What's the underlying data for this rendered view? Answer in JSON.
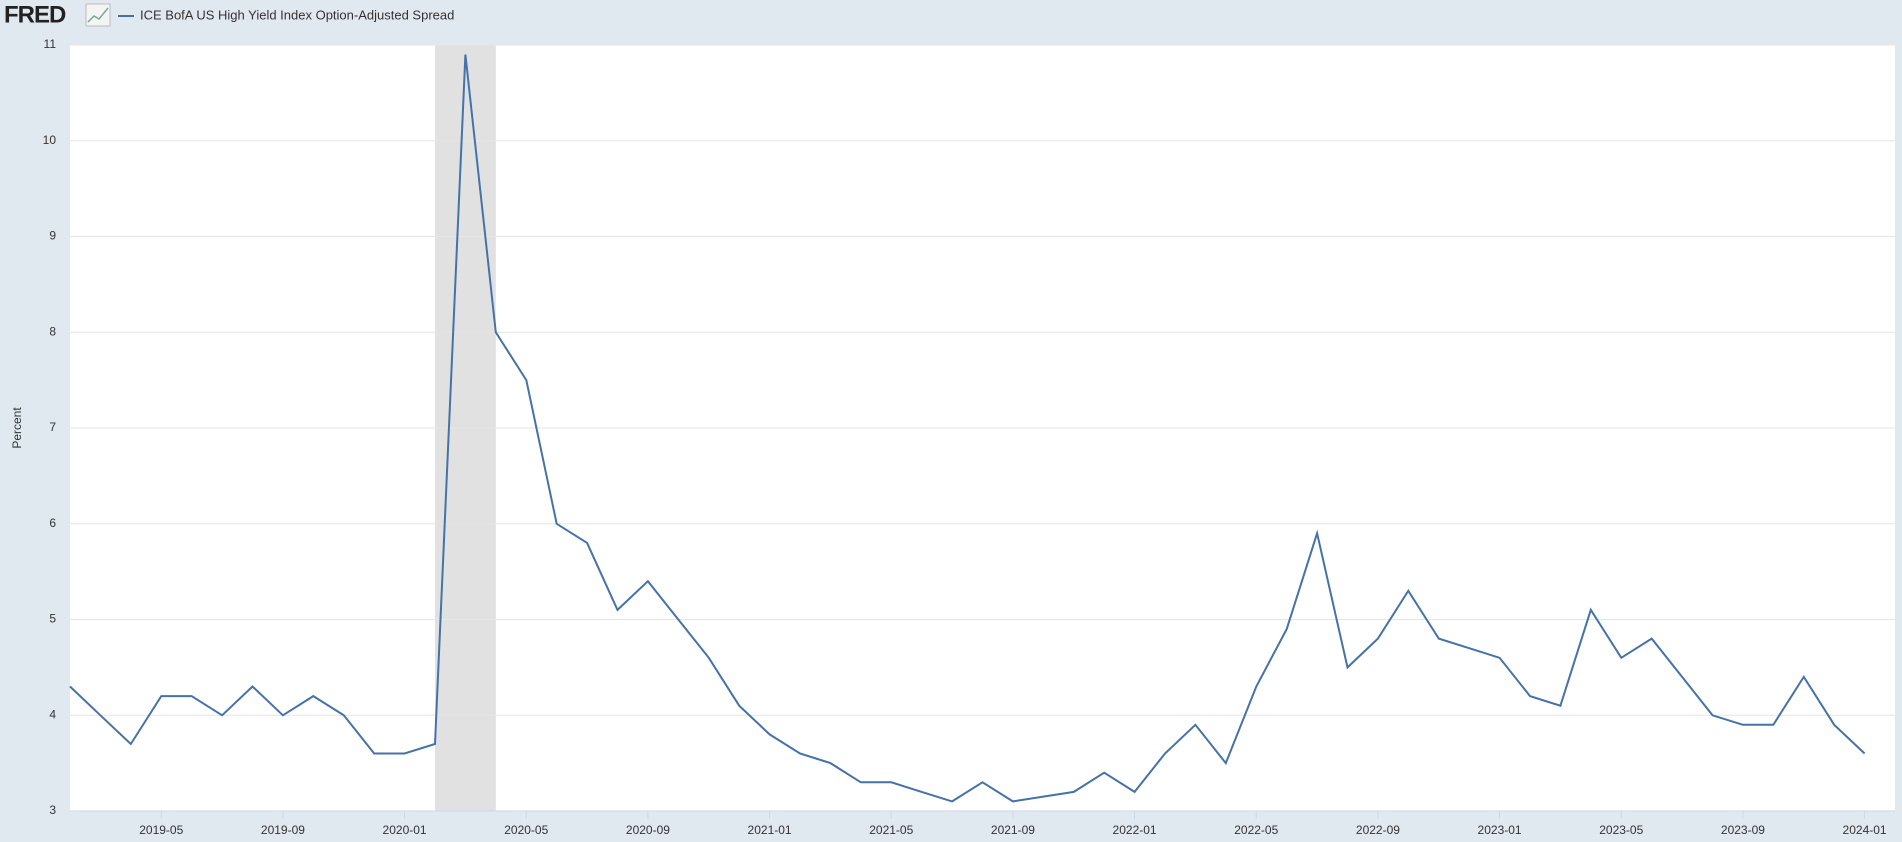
{
  "chart_data": {
    "type": "line",
    "logo": "FRED",
    "y_label": "Percent",
    "x": [
      "2019-02",
      "2019-03",
      "2019-04",
      "2019-05",
      "2019-06",
      "2019-07",
      "2019-08",
      "2019-09",
      "2019-10",
      "2019-11",
      "2019-12",
      "2020-01",
      "2020-02",
      "2020-03",
      "2020-04",
      "2020-05",
      "2020-06",
      "2020-07",
      "2020-08",
      "2020-09",
      "2020-10",
      "2020-11",
      "2020-12",
      "2021-01",
      "2021-02",
      "2021-03",
      "2021-04",
      "2021-05",
      "2021-06",
      "2021-07",
      "2021-08",
      "2021-09",
      "2021-10",
      "2021-11",
      "2021-12",
      "2022-01",
      "2022-02",
      "2022-03",
      "2022-04",
      "2022-05",
      "2022-06",
      "2022-07",
      "2022-08",
      "2022-09",
      "2022-10",
      "2022-11",
      "2022-12",
      "2023-01",
      "2023-02",
      "2023-03",
      "2023-04",
      "2023-05",
      "2023-06",
      "2023-07",
      "2023-08",
      "2023-09",
      "2023-10",
      "2023-11",
      "2023-12",
      "2024-01"
    ],
    "series": [
      {
        "name": "ICE BofA US High Yield Index Option-Adjusted Spread",
        "color": "#4572a7",
        "values": [
          4.3,
          4.0,
          3.7,
          4.2,
          4.2,
          4.0,
          4.3,
          4.0,
          4.2,
          4.0,
          3.6,
          3.6,
          3.7,
          10.9,
          8.0,
          7.5,
          6.0,
          5.8,
          5.1,
          5.4,
          5.0,
          4.6,
          4.1,
          3.8,
          3.6,
          3.5,
          3.3,
          3.3,
          3.2,
          3.1,
          3.3,
          3.1,
          3.15,
          3.2,
          3.4,
          3.2,
          3.6,
          3.9,
          3.5,
          4.3,
          4.9,
          5.9,
          4.5,
          4.8,
          5.3,
          4.8,
          4.7,
          4.6,
          4.2,
          4.1,
          5.1,
          4.6,
          4.8,
          4.4,
          4.0,
          3.9,
          3.9,
          4.4,
          3.9,
          3.6
        ]
      }
    ],
    "xlim": [
      "2019-02",
      "2024-02"
    ],
    "xticks": [
      "2019-05",
      "2019-09",
      "2020-01",
      "2020-05",
      "2020-09",
      "2021-01",
      "2021-05",
      "2021-09",
      "2022-01",
      "2022-05",
      "2022-09",
      "2023-01",
      "2023-05",
      "2023-09",
      "2024-01"
    ],
    "ylim": [
      3,
      11
    ],
    "yticks": [
      3,
      4,
      5,
      6,
      7,
      8,
      9,
      10,
      11
    ],
    "grid": true,
    "recessions": [
      {
        "start": "2020-02",
        "end": "2020-04"
      }
    ]
  }
}
